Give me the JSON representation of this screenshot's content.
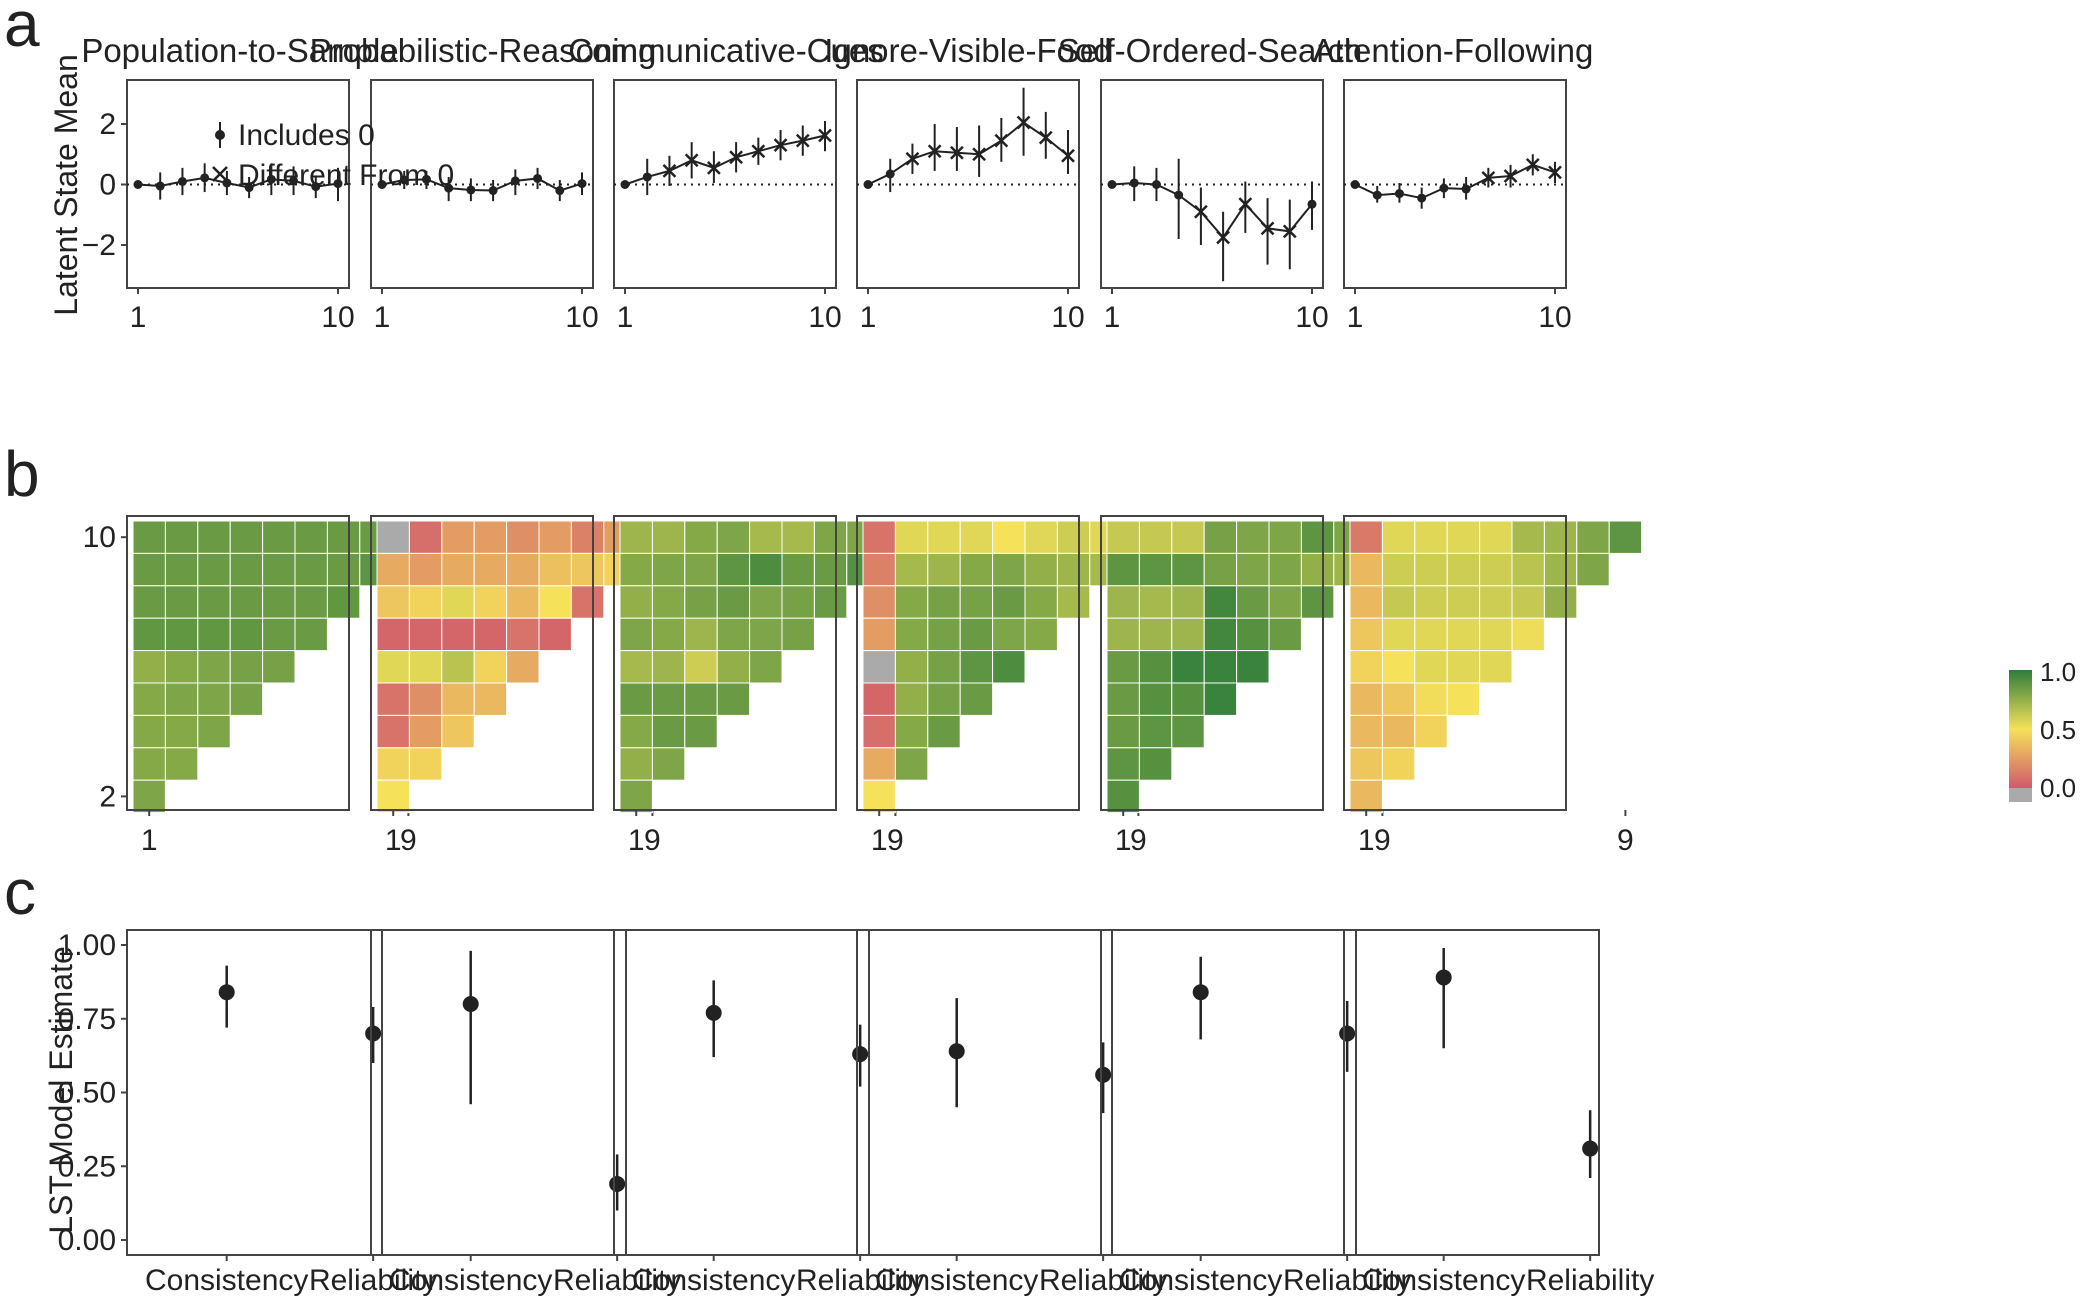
{
  "panels": {
    "a": "a",
    "b": "b",
    "c": "c"
  },
  "facet_titles": [
    "Population-to-Sample",
    "Probabilistic-Reasoning",
    "Communicative-Cues",
    "Ignore-Visible-Food",
    "Self-Ordered-Search",
    "Attention-Following"
  ],
  "colors": {
    "low": "#d0586c",
    "mid": "#f5e15a",
    "high": "#2e7d3a",
    "na": "#aaaaaa",
    "ink": "#222222"
  },
  "chart_data": [
    {
      "type": "line",
      "panel": "a",
      "ylabel": "Latent State Mean",
      "ylim": [
        -3.5,
        3.5
      ],
      "yticks": [
        "2",
        "0",
        "−2"
      ],
      "xticks": [
        "1",
        "10"
      ],
      "legend": {
        "position": "top-left",
        "items": [
          "Includes 0",
          "Different From 0"
        ]
      },
      "facets": [
        {
          "title": "Population-to-Sample",
          "y": [
            0,
            -0.05,
            0.1,
            0.22,
            0.05,
            -0.1,
            0.17,
            0.12,
            -0.07,
            0.03
          ],
          "lo": [
            0,
            -0.5,
            -0.35,
            -0.25,
            -0.35,
            -0.45,
            -0.35,
            -0.35,
            -0.45,
            -0.55
          ],
          "hi": [
            0,
            0.4,
            0.55,
            0.7,
            0.45,
            0.25,
            0.7,
            0.6,
            0.3,
            0.55
          ],
          "diff": [
            0,
            0,
            0,
            0,
            0,
            0,
            0,
            0,
            0,
            0
          ]
        },
        {
          "title": "Probabilistic-Reasoning",
          "y": [
            0,
            0.15,
            0.17,
            -0.12,
            -0.18,
            -0.2,
            0.12,
            0.2,
            -0.2,
            0.03
          ],
          "lo": [
            0,
            -0.15,
            -0.15,
            -0.55,
            -0.55,
            -0.55,
            -0.35,
            -0.15,
            -0.55,
            -0.35
          ],
          "hi": [
            0,
            0.45,
            0.45,
            0.25,
            0.2,
            0.15,
            0.5,
            0.55,
            0.15,
            0.4
          ],
          "diff": [
            0,
            0,
            0,
            0,
            0,
            0,
            0,
            0,
            0,
            0
          ]
        },
        {
          "title": "Communicative-Cues",
          "y": [
            0,
            0.25,
            0.45,
            0.8,
            0.55,
            0.9,
            1.1,
            1.3,
            1.45,
            1.62
          ],
          "lo": [
            0,
            -0.35,
            -0.05,
            0.2,
            0.05,
            0.4,
            0.65,
            0.8,
            0.95,
            1.1
          ],
          "hi": [
            0,
            0.85,
            0.95,
            1.4,
            1.1,
            1.4,
            1.55,
            1.8,
            1.95,
            2.1
          ],
          "diff": [
            0,
            0,
            1,
            1,
            1,
            1,
            1,
            1,
            1,
            1
          ]
        },
        {
          "title": "Ignore-Visible-Food",
          "y": [
            0,
            0.35,
            0.85,
            1.1,
            1.05,
            1.0,
            1.45,
            2.05,
            1.55,
            0.95
          ],
          "lo": [
            0,
            -0.25,
            0.35,
            0.45,
            0.45,
            0.25,
            0.75,
            0.95,
            0.85,
            0.35
          ],
          "hi": [
            0,
            0.85,
            1.35,
            2.0,
            1.9,
            1.95,
            2.2,
            3.2,
            2.4,
            1.8
          ],
          "diff": [
            0,
            0,
            1,
            1,
            1,
            1,
            1,
            1,
            1,
            1
          ]
        },
        {
          "title": "Self-Ordered-Search",
          "y": [
            0,
            0.05,
            0.0,
            -0.35,
            -0.9,
            -1.75,
            -0.65,
            -1.45,
            -1.55,
            -0.65
          ],
          "lo": [
            0,
            -0.55,
            -0.55,
            -1.8,
            -2.0,
            -3.2,
            -1.6,
            -2.65,
            -2.8,
            -1.5
          ],
          "hi": [
            0,
            0.6,
            0.55,
            0.85,
            -0.1,
            -0.9,
            0.1,
            -0.45,
            -0.5,
            0.1
          ],
          "diff": [
            0,
            0,
            0,
            0,
            1,
            1,
            1,
            1,
            1,
            0
          ]
        },
        {
          "title": "Attention-Following",
          "y": [
            0,
            -0.35,
            -0.3,
            -0.45,
            -0.12,
            -0.15,
            0.22,
            0.28,
            0.65,
            0.4
          ],
          "lo": [
            0,
            -0.6,
            -0.6,
            -0.8,
            -0.45,
            -0.5,
            -0.1,
            -0.1,
            0.3,
            0.05
          ],
          "hi": [
            0,
            -0.05,
            0.05,
            -0.1,
            0.2,
            0.25,
            0.55,
            0.65,
            1.0,
            0.75
          ],
          "diff": [
            0,
            0,
            0,
            0,
            0,
            0,
            1,
            1,
            1,
            1
          ]
        }
      ]
    },
    {
      "type": "heatmap",
      "panel": "b",
      "xticks": [
        "1",
        "9"
      ],
      "yticks": [
        "10",
        "2"
      ],
      "scale": {
        "min": 0.0,
        "max": 1.0,
        "labels": [
          "1.0",
          "0.5",
          "0.0"
        ]
      },
      "note": "rows run from 10 (top) down to 2 (bottom); cell value per row listed from column 1 onward; null = grey",
      "facets": [
        {
          "title": "Population-to-Sample",
          "rows": [
            [
              0.85,
              0.85,
              0.85,
              0.85,
              0.85,
              0.85,
              0.85,
              0.85,
              0.88
            ],
            [
              0.85,
              0.85,
              0.85,
              0.85,
              0.85,
              0.85,
              0.85,
              0.88
            ],
            [
              0.85,
              0.85,
              0.85,
              0.85,
              0.85,
              0.85,
              0.87
            ],
            [
              0.87,
              0.87,
              0.87,
              0.87,
              0.85,
              0.85
            ],
            [
              0.75,
              0.78,
              0.8,
              0.82,
              0.82
            ],
            [
              0.78,
              0.8,
              0.8,
              0.82
            ],
            [
              0.78,
              0.78,
              0.8
            ],
            [
              0.78,
              0.78
            ],
            [
              0.8
            ]
          ]
        },
        {
          "title": "Probabilistic-Reasoning",
          "rows": [
            [
              null,
              0.08,
              0.25,
              0.25,
              0.2,
              0.25,
              0.15,
              0.25,
              0.25
            ],
            [
              0.3,
              0.25,
              0.3,
              0.3,
              0.3,
              0.38,
              0.4,
              0.45
            ],
            [
              0.4,
              0.45,
              0.55,
              0.45,
              0.35,
              0.5,
              0.1
            ],
            [
              0.05,
              0.05,
              0.05,
              0.05,
              0.1,
              0.05
            ],
            [
              0.55,
              0.55,
              0.65,
              0.45,
              0.3
            ],
            [
              0.1,
              0.2,
              0.35,
              0.35
            ],
            [
              0.1,
              0.25,
              0.4
            ],
            [
              0.45,
              0.45
            ],
            [
              0.5
            ]
          ]
        },
        {
          "title": "Communicative-Cues",
          "rows": [
            [
              0.72,
              0.72,
              0.78,
              0.8,
              0.7,
              0.7,
              0.8,
              0.8,
              0.85
            ],
            [
              0.78,
              0.8,
              0.8,
              0.88,
              0.92,
              0.85,
              0.85,
              0.9
            ],
            [
              0.75,
              0.78,
              0.82,
              0.85,
              0.8,
              0.82,
              0.85
            ],
            [
              0.8,
              0.78,
              0.72,
              0.8,
              0.8,
              0.82
            ],
            [
              0.7,
              0.72,
              0.6,
              0.75,
              0.8
            ],
            [
              0.85,
              0.85,
              0.85,
              0.85
            ],
            [
              0.78,
              0.85,
              0.85
            ],
            [
              0.75,
              0.8
            ],
            [
              0.8
            ]
          ]
        },
        {
          "title": "Ignore-Visible-Food",
          "rows": [
            [
              0.1,
              0.55,
              0.55,
              0.55,
              0.5,
              0.55,
              0.6,
              0.55,
              0.55
            ],
            [
              0.15,
              0.7,
              0.72,
              0.78,
              0.8,
              0.75,
              0.72,
              0.7
            ],
            [
              0.2,
              0.78,
              0.82,
              0.82,
              0.85,
              0.78,
              0.7
            ],
            [
              0.25,
              0.78,
              0.82,
              0.85,
              0.8,
              0.78
            ],
            [
              null,
              0.75,
              0.82,
              0.88,
              0.92
            ],
            [
              0.05,
              0.75,
              0.82,
              0.85
            ],
            [
              0.08,
              0.78,
              0.85
            ],
            [
              0.3,
              0.8
            ],
            [
              0.5
            ]
          ]
        },
        {
          "title": "Self-Ordered-Search",
          "rows": [
            [
              0.62,
              0.62,
              0.62,
              0.82,
              0.8,
              0.8,
              0.88,
              0.8,
              0.6
            ],
            [
              0.88,
              0.88,
              0.88,
              0.82,
              0.8,
              0.8,
              0.75,
              0.72
            ],
            [
              0.72,
              0.7,
              0.72,
              0.95,
              0.85,
              0.8,
              0.88
            ],
            [
              0.72,
              0.72,
              0.72,
              0.95,
              0.9,
              0.85
            ],
            [
              0.85,
              0.9,
              0.97,
              0.97,
              0.97
            ],
            [
              0.85,
              0.9,
              0.9,
              0.97
            ],
            [
              0.85,
              0.88,
              0.88
            ],
            [
              0.88,
              0.9
            ],
            [
              0.9
            ]
          ]
        },
        {
          "title": "Attention-Following",
          "rows": [
            [
              0.12,
              0.55,
              0.55,
              0.55,
              0.55,
              0.7,
              0.72,
              0.8,
              0.88
            ],
            [
              0.35,
              0.6,
              0.6,
              0.6,
              0.6,
              0.65,
              0.72,
              0.8
            ],
            [
              0.35,
              0.62,
              0.6,
              0.6,
              0.6,
              0.62,
              0.75
            ],
            [
              0.4,
              0.55,
              0.55,
              0.55,
              0.55,
              0.52
            ],
            [
              0.45,
              0.5,
              0.55,
              0.55,
              0.55
            ],
            [
              0.35,
              0.4,
              0.48,
              0.5
            ],
            [
              0.35,
              0.35,
              0.45
            ],
            [
              0.4,
              0.45
            ],
            [
              0.35
            ]
          ]
        }
      ]
    },
    {
      "type": "scatter",
      "panel": "c",
      "ylabel": "LST Model Estimate",
      "ylim": [
        -0.03,
        1.04
      ],
      "yticks": [
        "1.00",
        "0.75",
        "0.50",
        "0.25",
        "0.00"
      ],
      "categories": [
        "Consistency",
        "Reliability"
      ],
      "facets": [
        {
          "title": "Population-to-Sample",
          "values": [
            0.84,
            0.7
          ],
          "lo": [
            0.72,
            0.6
          ],
          "hi": [
            0.93,
            0.79
          ]
        },
        {
          "title": "Probabilistic-Reasoning",
          "values": [
            0.8,
            0.19
          ],
          "lo": [
            0.46,
            0.1
          ],
          "hi": [
            0.98,
            0.29
          ]
        },
        {
          "title": "Communicative-Cues",
          "values": [
            0.77,
            0.63
          ],
          "lo": [
            0.62,
            0.52
          ],
          "hi": [
            0.88,
            0.73
          ]
        },
        {
          "title": "Ignore-Visible-Food",
          "values": [
            0.64,
            0.56
          ],
          "lo": [
            0.45,
            0.43
          ],
          "hi": [
            0.82,
            0.67
          ]
        },
        {
          "title": "Self-Ordered-Search",
          "values": [
            0.84,
            0.7
          ],
          "lo": [
            0.68,
            0.57
          ],
          "hi": [
            0.96,
            0.81
          ]
        },
        {
          "title": "Attention-Following",
          "values": [
            0.89,
            0.31
          ],
          "lo": [
            0.65,
            0.21
          ],
          "hi": [
            0.99,
            0.44
          ]
        }
      ]
    }
  ]
}
